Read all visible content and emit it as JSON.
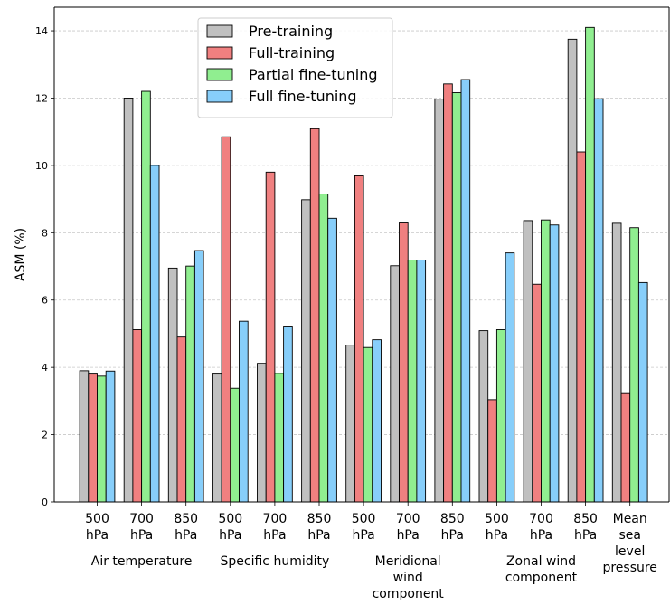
{
  "chart_data": {
    "type": "bar",
    "title": "",
    "xlabel": "",
    "ylabel": "ASM (%)",
    "ylim": [
      0,
      14.7
    ],
    "yticks": [
      "0",
      "2",
      "4",
      "6",
      "8",
      "10",
      "12",
      "14"
    ],
    "grid": "y-dashed",
    "legend_position": "top-center",
    "categories": [
      [
        "500",
        "hPa"
      ],
      [
        "700",
        "hPa"
      ],
      [
        "850",
        "hPa"
      ],
      [
        "500",
        "hPa"
      ],
      [
        "700",
        "hPa"
      ],
      [
        "850",
        "hPa"
      ],
      [
        "500",
        "hPa"
      ],
      [
        "700",
        "hPa"
      ],
      [
        "850",
        "hPa"
      ],
      [
        "500",
        "hPa"
      ],
      [
        "700",
        "hPa"
      ],
      [
        "850",
        "hPa"
      ],
      [
        "Mean",
        "sea",
        "level",
        "pressure"
      ]
    ],
    "groups": [
      {
        "label": [
          "Air temperature"
        ],
        "start": 0,
        "end": 2
      },
      {
        "label": [
          "Specific humidity"
        ],
        "start": 3,
        "end": 5
      },
      {
        "label": [
          "Meridional",
          "wind",
          "component"
        ],
        "start": 6,
        "end": 8
      },
      {
        "label": [
          "Zonal wind",
          "component"
        ],
        "start": 9,
        "end": 11
      },
      {
        "label": [
          "Mean",
          "sea",
          "level",
          "pressure"
        ],
        "start": 12,
        "end": 12
      }
    ],
    "series": [
      {
        "name": "Pre-training",
        "color": "#c0c0c0",
        "values": [
          3.9,
          12.0,
          6.95,
          3.8,
          4.12,
          8.98,
          4.66,
          7.02,
          11.97,
          5.09,
          8.36,
          13.75,
          8.28
        ]
      },
      {
        "name": "Full-training",
        "color": "#f08080",
        "values": [
          3.8,
          5.12,
          4.9,
          10.85,
          9.8,
          11.09,
          9.69,
          8.29,
          12.42,
          3.04,
          6.47,
          10.4,
          3.22
        ]
      },
      {
        "name": "Partial fine-tuning",
        "color": "#90ee90",
        "values": [
          3.74,
          12.2,
          7.01,
          3.38,
          3.82,
          9.15,
          4.59,
          7.19,
          12.16,
          5.12,
          8.38,
          14.1,
          8.15
        ]
      },
      {
        "name": "Full fine-tuning",
        "color": "#87cefa",
        "values": [
          3.89,
          10.0,
          7.47,
          5.37,
          5.2,
          8.43,
          4.82,
          7.19,
          12.55,
          7.4,
          8.23,
          11.98,
          6.52
        ]
      }
    ]
  }
}
